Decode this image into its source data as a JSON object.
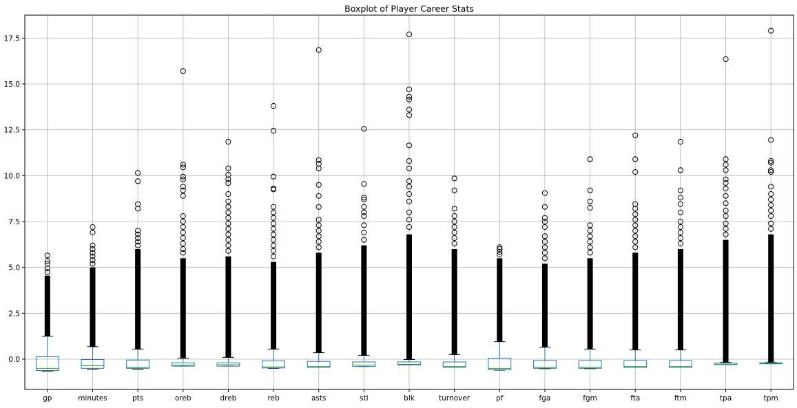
{
  "chart_data": {
    "type": "box",
    "title": "Boxplot of Player Career Stats",
    "xlabel": "",
    "ylabel": "",
    "ylim": [
      -1.65,
      18.75
    ],
    "grid": true,
    "yticks": [
      {
        "value": 0.0,
        "label": "0.0"
      },
      {
        "value": 2.5,
        "label": "2.5"
      },
      {
        "value": 5.0,
        "label": "5.0"
      },
      {
        "value": 7.5,
        "label": "7.5"
      },
      {
        "value": 10.0,
        "label": "10.0"
      },
      {
        "value": 12.5,
        "label": "12.5"
      },
      {
        "value": 15.0,
        "label": "15.0"
      },
      {
        "value": 17.5,
        "label": "17.5"
      }
    ],
    "categories": [
      "gp",
      "minutes",
      "pts",
      "oreb",
      "dreb",
      "reb",
      "asts",
      "stl",
      "blk",
      "turnover",
      "pf",
      "fga",
      "fgm",
      "fta",
      "ftm",
      "tpa",
      "tpm"
    ],
    "colors": {
      "box": "#1f77b4",
      "median": "#2ca02c",
      "whisker": "#1f77b4",
      "cap": "#000000",
      "flier": "#000000",
      "grid": "#b0b0b0"
    },
    "series": [
      {
        "category": "gp",
        "whisker_low": -0.65,
        "q1": -0.62,
        "median": -0.5,
        "q3": 0.13,
        "whisker_high": 1.25,
        "dense_to": 4.55,
        "outliers": [
          4.75,
          4.95,
          5.2,
          5.35,
          5.65
        ]
      },
      {
        "category": "minutes",
        "whisker_low": -0.55,
        "q1": -0.5,
        "median": -0.35,
        "q3": -0.02,
        "whisker_high": 0.68,
        "dense_to": 5.0,
        "outliers": [
          5.2,
          5.4,
          5.6,
          5.8,
          6.0,
          6.2,
          6.9,
          7.2
        ]
      },
      {
        "category": "pts",
        "whisker_low": -0.55,
        "q1": -0.5,
        "median": -0.45,
        "q3": -0.05,
        "whisker_high": 0.55,
        "dense_to": 6.0,
        "outliers": [
          6.2,
          6.4,
          6.6,
          6.8,
          7.0,
          8.2,
          8.45,
          9.7,
          10.15
        ]
      },
      {
        "category": "oreb",
        "whisker_low": -0.38,
        "q1": -0.38,
        "median": -0.33,
        "q3": -0.2,
        "whisker_high": 0.05,
        "dense_to": 5.5,
        "outliers": [
          5.8,
          6.0,
          6.3,
          6.6,
          6.9,
          7.2,
          7.5,
          7.8,
          8.9,
          9.2,
          9.4,
          9.8,
          9.95,
          10.45,
          10.6,
          15.7
        ]
      },
      {
        "category": "dreb",
        "whisker_low": -0.38,
        "q1": -0.38,
        "median": -0.3,
        "q3": -0.2,
        "whisker_high": 0.1,
        "dense_to": 5.6,
        "outliers": [
          5.9,
          6.2,
          6.5,
          6.8,
          7.1,
          7.4,
          7.7,
          8.0,
          8.3,
          8.6,
          9.0,
          9.6,
          9.8,
          10.05,
          10.4,
          11.85
        ]
      },
      {
        "category": "reb",
        "whisker_low": -0.5,
        "q1": -0.48,
        "median": -0.42,
        "q3": -0.1,
        "whisker_high": 0.55,
        "dense_to": 5.3,
        "outliers": [
          5.6,
          5.9,
          6.2,
          6.5,
          6.8,
          7.1,
          7.4,
          7.7,
          8.0,
          8.3,
          9.25,
          9.3,
          9.95,
          12.45,
          13.8
        ]
      },
      {
        "category": "asts",
        "whisker_low": -0.45,
        "q1": -0.45,
        "median": -0.4,
        "q3": -0.12,
        "whisker_high": 0.35,
        "dense_to": 5.8,
        "outliers": [
          6.1,
          6.4,
          6.7,
          7.0,
          7.3,
          7.6,
          8.3,
          8.9,
          9.5,
          10.4,
          10.65,
          10.85,
          16.85
        ]
      },
      {
        "category": "stl",
        "whisker_low": -0.4,
        "q1": -0.4,
        "median": -0.33,
        "q3": -0.15,
        "whisker_high": 0.2,
        "dense_to": 6.2,
        "outliers": [
          6.5,
          6.9,
          7.3,
          7.8,
          8.0,
          8.3,
          8.7,
          8.8,
          9.55,
          12.55
        ]
      },
      {
        "category": "blk",
        "whisker_low": -0.32,
        "q1": -0.32,
        "median": -0.28,
        "q3": -0.15,
        "whisker_high": -0.02,
        "dense_to": 6.8,
        "outliers": [
          7.2,
          7.6,
          8.0,
          8.6,
          9.0,
          9.4,
          9.7,
          10.4,
          10.8,
          11.65,
          13.3,
          13.6,
          14.15,
          14.3,
          14.7,
          17.7
        ]
      },
      {
        "category": "turnover",
        "whisker_low": -0.45,
        "q1": -0.45,
        "median": -0.4,
        "q3": -0.15,
        "whisker_high": 0.25,
        "dense_to": 6.0,
        "outliers": [
          6.3,
          6.6,
          6.9,
          7.2,
          7.5,
          7.8,
          8.2,
          9.2,
          9.85
        ]
      },
      {
        "category": "pf",
        "whisker_low": -0.6,
        "q1": -0.58,
        "median": -0.5,
        "q3": 0.05,
        "whisker_high": 0.95,
        "dense_to": 5.5,
        "outliers": [
          5.7,
          5.85,
          6.0,
          6.1
        ]
      },
      {
        "category": "fga",
        "whisker_low": -0.52,
        "q1": -0.5,
        "median": -0.45,
        "q3": -0.08,
        "whisker_high": 0.65,
        "dense_to": 5.2,
        "outliers": [
          5.5,
          5.8,
          6.1,
          6.4,
          6.7,
          7.2,
          7.5,
          7.7,
          8.3,
          9.05
        ]
      },
      {
        "category": "fgm",
        "whisker_low": -0.52,
        "q1": -0.5,
        "median": -0.45,
        "q3": -0.08,
        "whisker_high": 0.55,
        "dense_to": 5.5,
        "outliers": [
          5.8,
          6.1,
          6.4,
          6.7,
          7.0,
          7.3,
          8.25,
          8.6,
          9.2,
          10.9
        ]
      },
      {
        "category": "fta",
        "whisker_low": -0.45,
        "q1": -0.45,
        "median": -0.4,
        "q3": -0.08,
        "whisker_high": 0.5,
        "dense_to": 5.8,
        "outliers": [
          6.1,
          6.4,
          6.7,
          7.0,
          7.3,
          7.6,
          7.9,
          8.2,
          8.45,
          10.2,
          10.9,
          12.2
        ]
      },
      {
        "category": "ftm",
        "whisker_low": -0.45,
        "q1": -0.45,
        "median": -0.4,
        "q3": -0.08,
        "whisker_high": 0.5,
        "dense_to": 6.0,
        "outliers": [
          6.3,
          6.6,
          6.9,
          7.2,
          7.5,
          8.0,
          8.45,
          8.8,
          9.2,
          10.3,
          11.85
        ]
      },
      {
        "category": "tpa",
        "whisker_low": -0.3,
        "q1": -0.3,
        "median": -0.28,
        "q3": -0.22,
        "whisker_high": -0.18,
        "dense_to": 6.5,
        "outliers": [
          6.8,
          7.1,
          7.4,
          7.8,
          8.1,
          8.5,
          8.9,
          9.3,
          9.6,
          9.8,
          10.3,
          10.6,
          10.9,
          16.35
        ]
      },
      {
        "category": "tpm",
        "whisker_low": -0.25,
        "q1": -0.25,
        "median": -0.23,
        "q3": -0.2,
        "whisker_high": -0.18,
        "dense_to": 6.8,
        "outliers": [
          7.1,
          7.4,
          7.8,
          8.1,
          8.4,
          8.7,
          9.0,
          9.4,
          10.2,
          10.3,
          10.7,
          10.8,
          11.95,
          17.9
        ]
      }
    ]
  }
}
